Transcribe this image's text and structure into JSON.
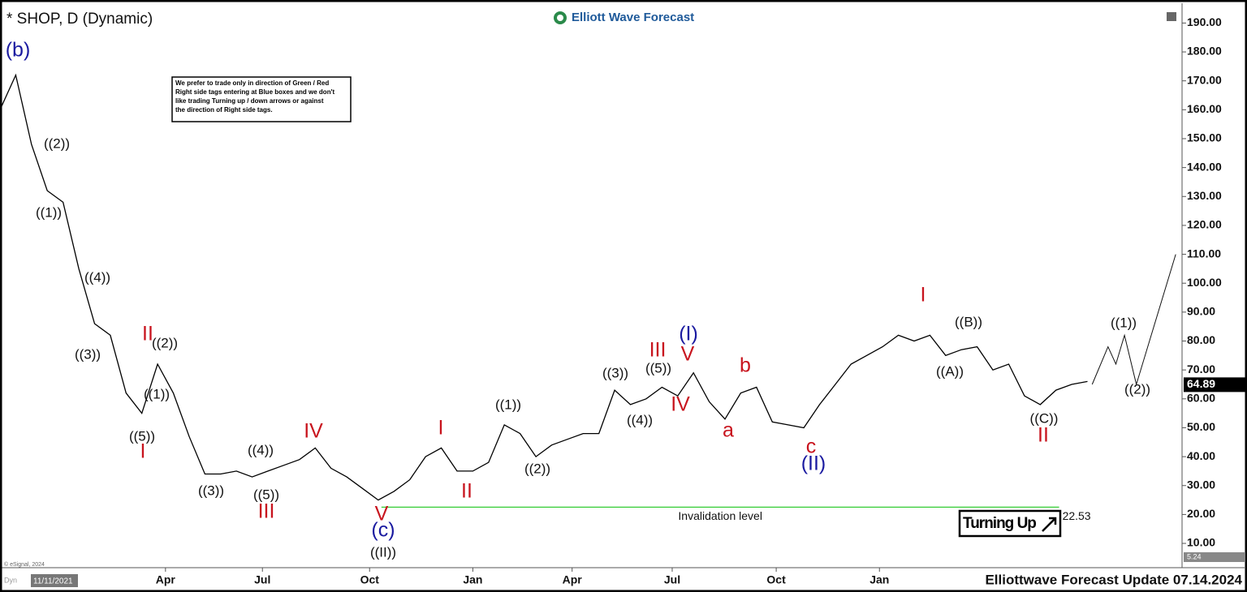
{
  "chart_data": {
    "type": "line",
    "title": "* SHOP, D (Dynamic)",
    "brand": "Elliott Wave Forecast",
    "footer": "Elliottwave Forecast Update 07.14.2024",
    "copyright": "© eSignal, 2024",
    "start_date": "11/11/2021",
    "mode": "Dyn",
    "note": [
      "We prefer to trade only in direction of Green / Red",
      "Right side tags entering at Blue boxes and we don't",
      "like trading Turning up / down arrows or against",
      "the direction of Right side tags."
    ],
    "badge": "Turning Up",
    "color": "#000000",
    "x": [
      0,
      2,
      4,
      6,
      8,
      10,
      12,
      14,
      16,
      18,
      20,
      22,
      24,
      26,
      28,
      30,
      32,
      34,
      36,
      38,
      40,
      42,
      44,
      46,
      48,
      50,
      52,
      54,
      56,
      58,
      60,
      62,
      64,
      66,
      68,
      70,
      72,
      74,
      76,
      78,
      80,
      82,
      84,
      86,
      88,
      90,
      92,
      94,
      96,
      98,
      100,
      102,
      104,
      106,
      108,
      110,
      112,
      114,
      116,
      118,
      120,
      122,
      124,
      126,
      128,
      130,
      132,
      134,
      136,
      138
    ],
    "values": [
      160,
      172,
      148,
      132,
      128,
      105,
      86,
      82,
      62,
      55,
      72,
      62,
      47,
      34,
      34,
      35,
      33,
      35,
      37,
      39,
      43,
      36,
      33,
      29,
      25,
      28,
      32,
      40,
      43,
      35,
      35,
      38,
      51,
      48,
      40,
      44,
      46,
      48,
      48,
      63,
      58,
      60,
      64,
      61,
      69,
      59,
      53,
      62,
      64,
      52,
      51,
      50,
      58,
      65,
      72,
      75,
      78,
      82,
      80,
      82,
      75,
      77,
      78,
      70,
      72,
      61,
      58,
      63,
      65,
      66
    ],
    "projection": {
      "x": [
        138.6,
        140.6,
        141.6,
        142.7,
        144.2,
        149.2
      ],
      "values": [
        65,
        78,
        72,
        82,
        65,
        110
      ]
    },
    "invalidation": {
      "label": "Invalidation level",
      "value": 22.53,
      "color": "#33cc33",
      "x": [
        48.4,
        134.4
      ]
    },
    "last_price": 64.89,
    "min_tag": 5.24,
    "xlim": [
      0,
      150
    ],
    "xticks": [
      {
        "value": 21,
        "label": "Apr"
      },
      {
        "value": 33.3,
        "label": "Jul"
      },
      {
        "value": 46.9,
        "label": "Oct"
      },
      {
        "value": 60,
        "label": "Jan"
      },
      {
        "value": 72.6,
        "label": "Apr"
      },
      {
        "value": 85.3,
        "label": "Jul"
      },
      {
        "value": 98.5,
        "label": "Oct"
      },
      {
        "value": 111.6,
        "label": "Jan"
      }
    ],
    "ylim": [
      3,
      196
    ],
    "yticks": [
      {
        "value": 10,
        "label": "10.00"
      },
      {
        "value": 20,
        "label": "20.00"
      },
      {
        "value": 30,
        "label": "30.00"
      },
      {
        "value": 40,
        "label": "40.00"
      },
      {
        "value": 50,
        "label": "50.00"
      },
      {
        "value": 60,
        "label": "60.00"
      },
      {
        "value": 70,
        "label": "70.00"
      },
      {
        "value": 80,
        "label": "80.00"
      },
      {
        "value": 90,
        "label": "90.00"
      },
      {
        "value": 100,
        "label": "100.00"
      },
      {
        "value": 110,
        "label": "110.00"
      },
      {
        "value": 120,
        "label": "120.00"
      },
      {
        "value": 130,
        "label": "130.00"
      },
      {
        "value": 140,
        "label": "140.00"
      },
      {
        "value": 150,
        "label": "150.00"
      },
      {
        "value": 160,
        "label": "160.00"
      },
      {
        "value": 170,
        "label": "170.00"
      },
      {
        "value": 180,
        "label": "180.00"
      },
      {
        "value": 190,
        "label": "190.00"
      }
    ],
    "wave_labels": [
      "(b)",
      "((2))",
      "((1))",
      "((4))",
      "((3))",
      "II",
      "((2))",
      "((1))",
      "((5))",
      "I",
      "((3))",
      "((4))",
      "((5))",
      "III",
      "IV",
      "V",
      "(c)",
      "((II))",
      "I",
      "((1))",
      "II",
      "((2))",
      "((3))",
      "((5))",
      "III",
      "(I)",
      "V",
      "((4))",
      "IV",
      "b",
      "a",
      "c",
      "(II)",
      "I",
      "((B))",
      "((A))",
      "((C))",
      "II",
      "((1))",
      "((2))"
    ]
  }
}
